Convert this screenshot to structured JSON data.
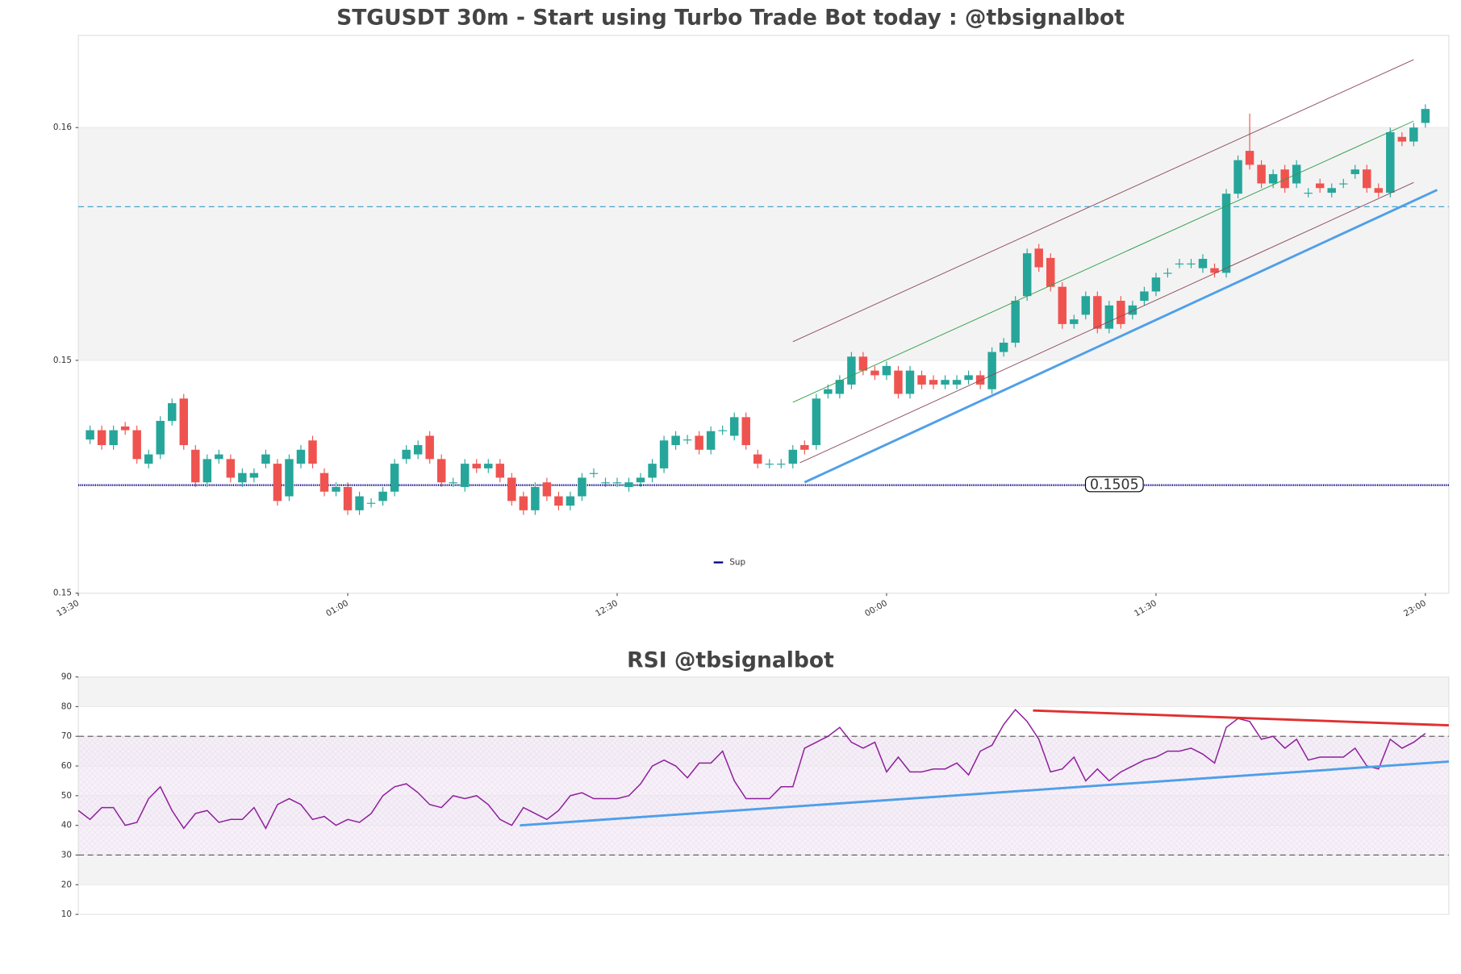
{
  "chart_data": [
    {
      "type": "candlestick",
      "title": "STGUSDT 30m - Start using Turbo Trade Bot today : @tbsignalbot",
      "up_color": "#26a69a",
      "down_color": "#ef5350",
      "x": [
        1,
        2,
        3,
        4,
        5,
        6,
        7,
        8,
        9,
        10,
        11,
        12,
        13,
        14,
        15,
        16,
        17,
        18,
        19,
        20,
        21,
        22,
        23,
        24,
        25,
        26,
        27,
        28,
        29,
        30,
        31,
        32,
        33,
        34,
        35,
        36,
        37,
        38,
        39,
        40,
        41,
        42,
        43,
        44,
        45,
        46,
        47,
        48,
        49,
        50,
        51,
        52,
        53,
        54,
        55,
        56,
        57,
        58,
        59,
        60,
        61,
        62,
        63,
        64,
        65,
        66,
        67,
        68,
        69,
        70,
        71,
        72,
        73,
        74,
        75,
        76,
        77,
        78,
        79,
        80,
        81,
        82,
        83,
        84,
        85,
        86,
        87,
        88,
        89,
        90,
        91,
        92,
        93,
        94,
        95,
        96,
        97,
        98,
        99,
        100,
        101,
        102,
        103,
        104,
        105,
        106,
        107,
        108,
        109,
        110,
        111,
        112,
        113,
        114,
        115
      ],
      "open": [
        0.15148,
        0.15168,
        0.15136,
        0.15176,
        0.15168,
        0.15096,
        0.15116,
        0.15188,
        0.15236,
        0.15126,
        0.15056,
        0.15106,
        0.15106,
        0.15056,
        0.15066,
        0.15096,
        0.15096,
        0.15026,
        0.15096,
        0.15146,
        0.15076,
        0.15036,
        0.15046,
        0.14996,
        0.15012,
        0.15016,
        0.15036,
        0.15106,
        0.15116,
        0.15156,
        0.15106,
        0.15056,
        0.15046,
        0.15096,
        0.15086,
        0.15096,
        0.15066,
        0.15026,
        0.14996,
        0.15056,
        0.15026,
        0.15006,
        0.15026,
        0.15076,
        0.15056,
        0.15056,
        0.15046,
        0.15056,
        0.15066,
        0.15086,
        0.15136,
        0.15148,
        0.15156,
        0.15126,
        0.15168,
        0.15156,
        0.15196,
        0.15116,
        0.15096,
        0.15096,
        0.15096,
        0.15136,
        0.15136,
        0.15246,
        0.15246,
        0.15266,
        0.15326,
        0.15296,
        0.15286,
        0.15296,
        0.15246,
        0.15286,
        0.15276,
        0.15266,
        0.15266,
        0.15276,
        0.15286,
        0.15256,
        0.15336,
        0.15356,
        0.15456,
        0.15558,
        0.15538,
        0.15476,
        0.15396,
        0.15416,
        0.15456,
        0.15386,
        0.15446,
        0.15416,
        0.15446,
        0.15466,
        0.15506,
        0.15526,
        0.15526,
        0.15516,
        0.15516,
        0.15506,
        0.15676,
        0.15768,
        0.15738,
        0.15698,
        0.15728,
        0.15698,
        0.15678,
        0.15698,
        0.15678,
        0.15698,
        0.15718,
        0.15728,
        0.15688,
        0.15678,
        0.15798,
        0.15788,
        0.15828
      ],
      "high": [
        0.15178,
        0.15178,
        0.15178,
        0.15186,
        0.15178,
        0.15126,
        0.15198,
        0.15236,
        0.15246,
        0.15136,
        0.15116,
        0.15126,
        0.15116,
        0.15086,
        0.15086,
        0.15126,
        0.15106,
        0.15116,
        0.15136,
        0.15156,
        0.15086,
        0.15056,
        0.15056,
        0.15036,
        0.15022,
        0.15046,
        0.15106,
        0.15136,
        0.15146,
        0.15166,
        0.15116,
        0.15066,
        0.15106,
        0.15106,
        0.15106,
        0.15106,
        0.15076,
        0.15036,
        0.15056,
        0.15066,
        0.15036,
        0.15036,
        0.15076,
        0.15086,
        0.15066,
        0.15066,
        0.15066,
        0.15076,
        0.15106,
        0.15156,
        0.15166,
        0.15158,
        0.15166,
        0.15176,
        0.15178,
        0.15206,
        0.15206,
        0.15126,
        0.15106,
        0.15106,
        0.15136,
        0.15146,
        0.15246,
        0.15266,
        0.15286,
        0.15336,
        0.15336,
        0.15306,
        0.15316,
        0.15306,
        0.15306,
        0.15296,
        0.15286,
        0.15286,
        0.15286,
        0.15296,
        0.15296,
        0.15346,
        0.15366,
        0.15456,
        0.15558,
        0.15568,
        0.15548,
        0.15486,
        0.15416,
        0.15466,
        0.15466,
        0.15446,
        0.15456,
        0.15446,
        0.15476,
        0.15506,
        0.15516,
        0.15536,
        0.15536,
        0.15546,
        0.15526,
        0.15686,
        0.15758,
        0.15848,
        0.15748,
        0.15728,
        0.15738,
        0.15748,
        0.15688,
        0.15708,
        0.15698,
        0.15708,
        0.15738,
        0.15738,
        0.15698,
        0.15818,
        0.15808,
        0.15828,
        0.15868
      ],
      "low": [
        0.15138,
        0.15126,
        0.15126,
        0.15158,
        0.15096,
        0.15086,
        0.15106,
        0.15178,
        0.15126,
        0.15046,
        0.15046,
        0.15096,
        0.15056,
        0.15046,
        0.15056,
        0.15086,
        0.15006,
        0.15016,
        0.15086,
        0.15086,
        0.15026,
        0.15026,
        0.14986,
        0.14986,
        0.15002,
        0.15006,
        0.15026,
        0.15096,
        0.15106,
        0.15096,
        0.15046,
        0.15046,
        0.15036,
        0.15076,
        0.15076,
        0.15056,
        0.15006,
        0.14986,
        0.14986,
        0.15016,
        0.14996,
        0.14996,
        0.15016,
        0.15066,
        0.15046,
        0.15046,
        0.15036,
        0.15046,
        0.15056,
        0.15076,
        0.15126,
        0.15138,
        0.15116,
        0.15116,
        0.15158,
        0.15146,
        0.15126,
        0.15086,
        0.15086,
        0.15086,
        0.15086,
        0.15116,
        0.15126,
        0.15236,
        0.15236,
        0.15256,
        0.15286,
        0.15276,
        0.15276,
        0.15236,
        0.15236,
        0.15256,
        0.15256,
        0.15256,
        0.15256,
        0.15266,
        0.15256,
        0.15246,
        0.15326,
        0.15346,
        0.15446,
        0.15508,
        0.15466,
        0.15386,
        0.15386,
        0.15406,
        0.15376,
        0.15376,
        0.15386,
        0.15406,
        0.15436,
        0.15456,
        0.15496,
        0.15516,
        0.15516,
        0.15506,
        0.15496,
        0.15496,
        0.15666,
        0.15728,
        0.15688,
        0.15688,
        0.15678,
        0.15688,
        0.15668,
        0.15678,
        0.15668,
        0.15688,
        0.15708,
        0.15678,
        0.15668,
        0.15668,
        0.15778,
        0.15778,
        0.15818
      ],
      "close": [
        0.15168,
        0.15136,
        0.15168,
        0.15168,
        0.15106,
        0.15116,
        0.15188,
        0.15226,
        0.15136,
        0.15056,
        0.15106,
        0.15116,
        0.15066,
        0.15076,
        0.15076,
        0.15116,
        0.15016,
        0.15106,
        0.15126,
        0.15096,
        0.15036,
        0.15046,
        0.14996,
        0.15026,
        0.15012,
        0.15036,
        0.15096,
        0.15126,
        0.15136,
        0.15106,
        0.15056,
        0.15056,
        0.15096,
        0.15086,
        0.15096,
        0.15066,
        0.15016,
        0.14996,
        0.15046,
        0.15026,
        0.15006,
        0.15026,
        0.15066,
        0.15076,
        0.15056,
        0.15056,
        0.15056,
        0.15066,
        0.15096,
        0.15146,
        0.15156,
        0.15148,
        0.15126,
        0.15166,
        0.15168,
        0.15196,
        0.15136,
        0.15096,
        0.15096,
        0.15096,
        0.15126,
        0.15126,
        0.15236,
        0.15256,
        0.15276,
        0.15326,
        0.15296,
        0.15286,
        0.15306,
        0.15246,
        0.15296,
        0.15266,
        0.15266,
        0.15276,
        0.15276,
        0.15286,
        0.15266,
        0.15336,
        0.15356,
        0.15446,
        0.15548,
        0.15518,
        0.15476,
        0.15396,
        0.15406,
        0.15456,
        0.15386,
        0.15436,
        0.15396,
        0.15436,
        0.15466,
        0.15496,
        0.15506,
        0.15526,
        0.15526,
        0.15536,
        0.15506,
        0.15676,
        0.15748,
        0.15738,
        0.15698,
        0.15718,
        0.15688,
        0.15738,
        0.15678,
        0.15688,
        0.15688,
        0.15698,
        0.15728,
        0.15688,
        0.15678,
        0.15808,
        0.15788,
        0.15818,
        0.15858
      ],
      "xlim": [
        0,
        117
      ],
      "xticks": [
        {
          "value": 0,
          "label": "13:30"
        },
        {
          "value": 23,
          "label": "01:00"
        },
        {
          "value": 46,
          "label": "12:30"
        },
        {
          "value": 69,
          "label": "00:00"
        },
        {
          "value": 92,
          "label": "11:30"
        },
        {
          "value": 115,
          "label": "23:00"
        }
      ],
      "ylim": [
        0.14818,
        0.16016
      ],
      "yticks": [
        {
          "value": 0.14818,
          "label": "0.15"
        },
        {
          "value": 0.15318,
          "label": "0.15"
        },
        {
          "value": 0.15818,
          "label": "0.16"
        }
      ],
      "hlines": [
        {
          "value": 0.15648,
          "color": "#4aa3c8",
          "dash": true
        }
      ],
      "support": {
        "name": "Sup",
        "value": 0.1505,
        "label": "0.1505",
        "color": "#000080"
      },
      "trend_lines": [
        {
          "x": [
            61,
            114
          ],
          "y": [
            0.15358,
            0.15964
          ],
          "color": "#8b4a5a",
          "width": 0.8
        },
        {
          "x": [
            61,
            114
          ],
          "y": [
            0.15228,
            0.15832
          ],
          "color": "#2e9e4a",
          "width": 0.8
        },
        {
          "x": [
            61.6,
            114
          ],
          "y": [
            0.15098,
            0.157
          ],
          "color": "#8b4a5a",
          "width": 0.8
        },
        {
          "x": [
            62,
            116
          ],
          "y": [
            0.15056,
            0.15684
          ],
          "color": "#4f9fe8",
          "width": 2.5
        }
      ]
    },
    {
      "type": "line",
      "title": "RSI @tbsignalbot",
      "x": [
        0,
        1,
        2,
        3,
        4,
        5,
        6,
        7,
        8,
        9,
        10,
        11,
        12,
        13,
        14,
        15,
        16,
        17,
        18,
        19,
        20,
        21,
        22,
        23,
        24,
        25,
        26,
        27,
        28,
        29,
        30,
        31,
        32,
        33,
        34,
        35,
        36,
        37,
        38,
        39,
        40,
        41,
        42,
        43,
        44,
        45,
        46,
        47,
        48,
        49,
        50,
        51,
        52,
        53,
        54,
        55,
        56,
        57,
        58,
        59,
        60,
        61,
        62,
        63,
        64,
        65,
        66,
        67,
        68,
        69,
        70,
        71,
        72,
        73,
        74,
        75,
        76,
        77,
        78,
        79,
        80,
        81,
        82,
        83,
        84,
        85,
        86,
        87,
        88,
        89,
        90,
        91,
        92,
        93,
        94,
        95,
        96,
        97,
        98,
        99,
        100,
        101,
        102,
        103,
        104,
        105,
        106,
        107,
        108,
        109,
        110,
        111,
        112,
        113,
        114,
        115
      ],
      "series": [
        {
          "color": "#8e1f9c",
          "values": [
            45,
            42,
            46,
            46,
            40,
            41,
            49,
            53,
            45,
            39,
            44,
            45,
            41,
            42,
            42,
            46,
            39,
            47,
            49,
            47,
            42,
            43,
            40,
            42,
            41,
            44,
            50,
            53,
            54,
            51,
            47,
            46,
            50,
            49,
            50,
            47,
            42,
            40,
            46,
            44,
            42,
            45,
            50,
            51,
            49,
            49,
            49,
            50,
            54,
            60,
            62,
            60,
            56,
            61,
            61,
            65,
            55,
            49,
            49,
            49,
            53,
            53,
            66,
            68,
            70,
            73,
            68,
            66,
            68,
            58,
            63,
            58,
            58,
            59,
            59,
            61,
            57,
            65,
            67,
            74,
            79,
            75,
            69,
            58,
            59,
            63,
            55,
            59,
            55,
            58,
            60,
            62,
            63,
            65,
            65,
            66,
            64,
            61,
            73,
            76,
            75,
            69,
            70,
            66,
            69,
            62,
            63,
            63,
            63,
            66,
            60,
            59,
            69,
            66,
            68,
            71
          ]
        }
      ],
      "xlim": [
        0,
        117
      ],
      "ylim": [
        10,
        90
      ],
      "yticks": [
        10,
        20,
        30,
        40,
        50,
        60,
        70,
        80,
        90
      ],
      "hlines": [
        {
          "value": 70,
          "color": "#555555",
          "dash": true
        },
        {
          "value": 30,
          "color": "#555555",
          "dash": true
        }
      ],
      "trend_lines": [
        {
          "x": [
            81.5,
            117
          ],
          "y": [
            78.7,
            73.7
          ],
          "color": "#e03030",
          "width": 2.5
        },
        {
          "x": [
            37.7,
            117
          ],
          "y": [
            40,
            61.5
          ],
          "color": "#4f9fe8",
          "width": 2.5
        }
      ]
    }
  ]
}
